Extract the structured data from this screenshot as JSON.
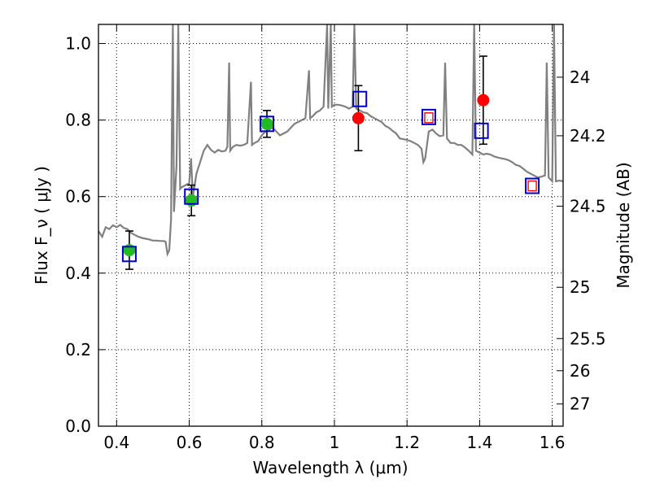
{
  "chart_data": {
    "type": "scatter",
    "title": "",
    "xlabel": "Wavelength  λ (μm)",
    "ylabel": "Flux  F_ν ( μJy )",
    "y2label": "Magnitude (AB)",
    "xlim": [
      0.35,
      1.63
    ],
    "ylim": [
      0.0,
      1.05
    ],
    "x_ticks": [
      0.4,
      0.6,
      0.8,
      1.0,
      1.2,
      1.4,
      1.6
    ],
    "x_tick_labels": [
      "0.4",
      "0.6",
      "0.8",
      "1",
      "1.2",
      "1.4",
      "1.6"
    ],
    "y_ticks": [
      0.0,
      0.2,
      0.4,
      0.6,
      0.8,
      1.0
    ],
    "y_tick_labels": [
      "0.0",
      "0.2",
      "0.4",
      "0.6",
      "0.8",
      "1.0"
    ],
    "y2_ticks": [
      {
        "label": "24",
        "flux": 0.912
      },
      {
        "label": "24.2",
        "flux": 0.759
      },
      {
        "label": "24.5",
        "flux": 0.575
      },
      {
        "label": "25",
        "flux": 0.363
      },
      {
        "label": "25.5",
        "flux": 0.229
      },
      {
        "label": "26",
        "flux": 0.145
      },
      {
        "label": "27",
        "flux": 0.058
      }
    ],
    "grid": true,
    "grid_style": "dotted",
    "colors": {
      "model": "#808080",
      "green_points": "#22bb22",
      "red_points": "#ff0000",
      "model_photometry": "#0000cc",
      "inner_squares": "#ff0000",
      "errorbars": "#000000"
    },
    "series": [
      {
        "marker": "circle",
        "color": "#22bb22",
        "points": [
          {
            "x": 0.435,
            "y": 0.46,
            "err": 0.05
          },
          {
            "x": 0.606,
            "y": 0.59,
            "err": 0.04
          },
          {
            "x": 0.814,
            "y": 0.79,
            "err": 0.035
          }
        ]
      },
      {
        "marker": "circle",
        "color": "#ff0000",
        "points": [
          {
            "x": 1.066,
            "y": 0.805,
            "err": 0.085
          },
          {
            "x": 1.41,
            "y": 0.852,
            "err": 0.115
          }
        ]
      },
      {
        "marker": "open-square",
        "color": "#0000cc",
        "points": [
          {
            "x": 0.435,
            "y": 0.45
          },
          {
            "x": 0.606,
            "y": 0.6
          },
          {
            "x": 0.814,
            "y": 0.79
          },
          {
            "x": 1.07,
            "y": 0.855
          },
          {
            "x": 1.26,
            "y": 0.808
          },
          {
            "x": 1.405,
            "y": 0.772
          },
          {
            "x": 1.545,
            "y": 0.628
          }
        ]
      },
      {
        "marker": "open-square-small",
        "color": "#ff0000",
        "points": [
          {
            "x": 1.26,
            "y": 0.806
          },
          {
            "x": 1.545,
            "y": 0.628
          }
        ]
      }
    ],
    "model_spectrum": [
      [
        0.35,
        0.51
      ],
      [
        0.36,
        0.495
      ],
      [
        0.37,
        0.52
      ],
      [
        0.38,
        0.515
      ],
      [
        0.39,
        0.525
      ],
      [
        0.4,
        0.52
      ],
      [
        0.41,
        0.526
      ],
      [
        0.42,
        0.518
      ],
      [
        0.43,
        0.515
      ],
      [
        0.44,
        0.505
      ],
      [
        0.45,
        0.5
      ],
      [
        0.46,
        0.495
      ],
      [
        0.47,
        0.492
      ],
      [
        0.48,
        0.49
      ],
      [
        0.49,
        0.488
      ],
      [
        0.5,
        0.485
      ],
      [
        0.51,
        0.485
      ],
      [
        0.52,
        0.484
      ],
      [
        0.53,
        0.484
      ],
      [
        0.535,
        0.482
      ],
      [
        0.54,
        0.45
      ],
      [
        0.545,
        0.46
      ],
      [
        0.55,
        0.54
      ],
      [
        0.555,
        1.05
      ],
      [
        0.558,
        0.56
      ],
      [
        0.565,
        0.68
      ],
      [
        0.57,
        1.05
      ],
      [
        0.575,
        0.62
      ],
      [
        0.58,
        0.625
      ],
      [
        0.59,
        0.63
      ],
      [
        0.6,
        0.635
      ],
      [
        0.605,
        0.7
      ],
      [
        0.61,
        0.6
      ],
      [
        0.62,
        0.66
      ],
      [
        0.63,
        0.69
      ],
      [
        0.64,
        0.72
      ],
      [
        0.65,
        0.735
      ],
      [
        0.66,
        0.722
      ],
      [
        0.67,
        0.715
      ],
      [
        0.68,
        0.722
      ],
      [
        0.69,
        0.718
      ],
      [
        0.7,
        0.72
      ],
      [
        0.705,
        0.73
      ],
      [
        0.71,
        0.95
      ],
      [
        0.713,
        0.72
      ],
      [
        0.72,
        0.73
      ],
      [
        0.73,
        0.735
      ],
      [
        0.74,
        0.733
      ],
      [
        0.75,
        0.735
      ],
      [
        0.76,
        0.74
      ],
      [
        0.77,
        0.9
      ],
      [
        0.773,
        0.735
      ],
      [
        0.78,
        0.74
      ],
      [
        0.79,
        0.745
      ],
      [
        0.8,
        0.76
      ],
      [
        0.81,
        0.77
      ],
      [
        0.82,
        0.775
      ],
      [
        0.83,
        0.78
      ],
      [
        0.84,
        0.77
      ],
      [
        0.85,
        0.76
      ],
      [
        0.86,
        0.765
      ],
      [
        0.87,
        0.77
      ],
      [
        0.88,
        0.78
      ],
      [
        0.89,
        0.79
      ],
      [
        0.9,
        0.795
      ],
      [
        0.91,
        0.8
      ],
      [
        0.92,
        0.805
      ],
      [
        0.93,
        0.93
      ],
      [
        0.933,
        0.805
      ],
      [
        0.94,
        0.81
      ],
      [
        0.95,
        0.82
      ],
      [
        0.96,
        0.825
      ],
      [
        0.97,
        0.835
      ],
      [
        0.98,
        1.05
      ],
      [
        0.983,
        0.83
      ],
      [
        0.99,
        1.05
      ],
      [
        0.993,
        0.835
      ],
      [
        1.0,
        0.84
      ],
      [
        1.01,
        0.84
      ],
      [
        1.02,
        0.838
      ],
      [
        1.03,
        0.835
      ],
      [
        1.04,
        0.83
      ],
      [
        1.05,
        0.835
      ],
      [
        1.055,
        1.05
      ],
      [
        1.06,
        0.83
      ],
      [
        1.07,
        0.825
      ],
      [
        1.08,
        0.82
      ],
      [
        1.09,
        0.818
      ],
      [
        1.1,
        0.81
      ],
      [
        1.11,
        0.805
      ],
      [
        1.12,
        0.8
      ],
      [
        1.13,
        0.795
      ],
      [
        1.14,
        0.785
      ],
      [
        1.15,
        0.78
      ],
      [
        1.16,
        0.772
      ],
      [
        1.17,
        0.765
      ],
      [
        1.18,
        0.752
      ],
      [
        1.19,
        0.75
      ],
      [
        1.2,
        0.748
      ],
      [
        1.21,
        0.745
      ],
      [
        1.22,
        0.74
      ],
      [
        1.23,
        0.735
      ],
      [
        1.24,
        0.725
      ],
      [
        1.245,
        0.69
      ],
      [
        1.25,
        0.7
      ],
      [
        1.26,
        0.77
      ],
      [
        1.27,
        0.775
      ],
      [
        1.28,
        0.765
      ],
      [
        1.29,
        0.758
      ],
      [
        1.3,
        0.76
      ],
      [
        1.305,
        0.95
      ],
      [
        1.31,
        0.752
      ],
      [
        1.32,
        0.74
      ],
      [
        1.33,
        0.74
      ],
      [
        1.34,
        0.735
      ],
      [
        1.35,
        0.735
      ],
      [
        1.36,
        0.728
      ],
      [
        1.37,
        0.72
      ],
      [
        1.38,
        0.71
      ],
      [
        1.385,
        1.05
      ],
      [
        1.39,
        0.72
      ],
      [
        1.4,
        0.715
      ],
      [
        1.41,
        0.71
      ],
      [
        1.42,
        0.712
      ],
      [
        1.43,
        0.71
      ],
      [
        1.44,
        0.705
      ],
      [
        1.45,
        0.702
      ],
      [
        1.46,
        0.7
      ],
      [
        1.47,
        0.698
      ],
      [
        1.48,
        0.695
      ],
      [
        1.49,
        0.69
      ],
      [
        1.5,
        0.683
      ],
      [
        1.51,
        0.68
      ],
      [
        1.52,
        0.673
      ],
      [
        1.53,
        0.665
      ],
      [
        1.54,
        0.66
      ],
      [
        1.55,
        0.655
      ],
      [
        1.56,
        0.65
      ],
      [
        1.57,
        0.652
      ],
      [
        1.58,
        0.655
      ],
      [
        1.585,
        0.95
      ],
      [
        1.59,
        0.65
      ],
      [
        1.6,
        0.64
      ],
      [
        1.605,
        1.05
      ],
      [
        1.61,
        0.64
      ],
      [
        1.62,
        0.642
      ],
      [
        1.63,
        0.64
      ]
    ]
  }
}
